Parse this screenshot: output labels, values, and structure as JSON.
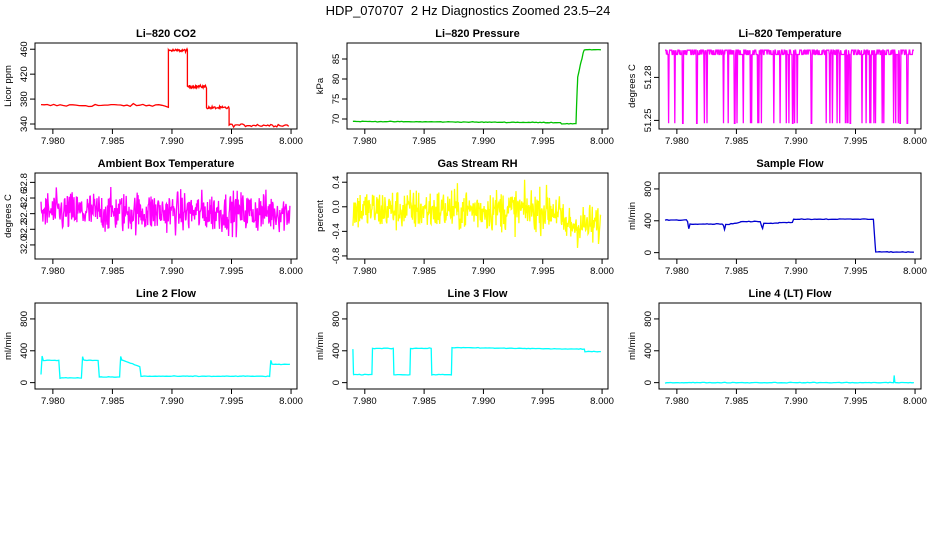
{
  "title": "HDP_070707  2 Hz Diagnostics Zoomed 23.5–24",
  "chart_data": [
    {
      "type": "line",
      "title": "Li–820 CO2",
      "ylabel": "Licor ppm",
      "color": "#ff0000",
      "xlim": [
        7.9785,
        8.0005
      ],
      "ylim": [
        332,
        470
      ],
      "xticks": [
        "7.980",
        "7.985",
        "7.990",
        "7.995",
        "8.000"
      ],
      "yticks": [
        "340",
        "380",
        "420",
        "460"
      ],
      "series": [
        {
          "kind": "step",
          "x": [
            7.979,
            7.9897,
            7.9913,
            7.9929,
            7.9948,
            7.9998
          ],
          "y": [
            370,
            458,
            400,
            366,
            338,
            338
          ],
          "noise": 1.2
        }
      ]
    },
    {
      "type": "line",
      "title": "Li–820 Pressure",
      "ylabel": "kPa",
      "color": "#00c000",
      "xlim": [
        7.9785,
        8.0005
      ],
      "ylim": [
        67.5,
        89
      ],
      "xticks": [
        "7.980",
        "7.985",
        "7.990",
        "7.995",
        "8.000"
      ],
      "yticks": [
        "70",
        "75",
        "80",
        "85"
      ],
      "series": [
        {
          "kind": "points",
          "x": [
            7.979,
            7.9965,
            7.9966,
            7.9978,
            7.99785,
            7.9979,
            7.99795,
            7.9981,
            7.9982,
            7.9983,
            7.9984,
            7.9985,
            7.9999
          ],
          "y": [
            69.4,
            69.1,
            68.8,
            68.8,
            73.5,
            77.5,
            80.5,
            82.5,
            84.0,
            85.0,
            86.5,
            87.3,
            87.3
          ]
        }
      ]
    },
    {
      "type": "line",
      "title": "Li–820 Temperature",
      "ylabel": "degrees C",
      "color": "#ff00ff",
      "xlim": [
        7.9785,
        8.0005
      ],
      "ylim": [
        51.244,
        51.304
      ],
      "xticks": [
        "7.980",
        "7.985",
        "7.990",
        "7.995",
        "8.000"
      ],
      "yticks": [
        "51.25",
        "51.28"
      ],
      "series": [
        {
          "kind": "binary",
          "x": [
            7.979,
            7.9999
          ],
          "levels": [
            51.248,
            51.299
          ],
          "mean": 51.296
        }
      ]
    },
    {
      "type": "line",
      "title": "Ambient Box Temperature",
      "ylabel": "degrees C",
      "color": "#ff00ff",
      "xlim": [
        7.9785,
        8.0005
      ],
      "ylim": [
        31.82,
        32.92
      ],
      "xticks": [
        "7.980",
        "7.985",
        "7.990",
        "7.995",
        "8.000"
      ],
      "yticks": [
        "32.0",
        "32.2",
        "32.4",
        "32.6",
        "32.8"
      ],
      "series": [
        {
          "kind": "noise",
          "x": [
            7.979,
            7.9999
          ],
          "mean": 32.42,
          "sd": 0.13
        }
      ]
    },
    {
      "type": "line",
      "title": "Gas Stream RH",
      "ylabel": "percent",
      "color": "#ffff00",
      "xlim": [
        7.9785,
        8.0005
      ],
      "ylim": [
        -0.85,
        0.55
      ],
      "xticks": [
        "7.980",
        "7.985",
        "7.990",
        "7.995",
        "8.000"
      ],
      "yticks": [
        "-0.8",
        "-0.4",
        "0.0",
        "0.4"
      ],
      "series": [
        {
          "kind": "noise",
          "x": [
            7.979,
            7.9965,
            7.9999
          ],
          "mean": [
            -0.05,
            -0.05,
            -0.3
          ],
          "sd": 0.17
        }
      ]
    },
    {
      "type": "line",
      "title": "Sample Flow",
      "ylabel": "ml/min",
      "color": "#0000d0",
      "xlim": [
        7.9785,
        8.0005
      ],
      "ylim": [
        -80,
        1000
      ],
      "xticks": [
        "7.980",
        "7.985",
        "7.990",
        "7.995",
        "8.000"
      ],
      "yticks": [
        "0",
        "400",
        "800"
      ],
      "series": [
        {
          "kind": "points",
          "x": [
            7.979,
            7.9808,
            7.9809,
            7.981,
            7.9811,
            7.9838,
            7.9839,
            7.984,
            7.9841,
            7.9853,
            7.9854,
            7.987,
            7.9871,
            7.9872,
            7.9873,
            7.9885,
            7.9886,
            7.9897,
            7.9898,
            7.99,
            7.9965,
            7.9966,
            7.9967,
            7.9999
          ],
          "y": [
            410,
            410,
            390,
            300,
            360,
            360,
            350,
            290,
            350,
            380,
            390,
            390,
            340,
            300,
            370,
            370,
            380,
            380,
            420,
            420,
            420,
            200,
            10,
            5
          ]
        }
      ]
    },
    {
      "type": "line",
      "title": "Line 2 Flow",
      "ylabel": "ml/min",
      "color": "#00ffff",
      "xlim": [
        7.9785,
        8.0005
      ],
      "ylim": [
        -80,
        1000
      ],
      "xticks": [
        "7.980",
        "7.985",
        "7.990",
        "7.995",
        "8.000"
      ],
      "yticks": [
        "0",
        "400",
        "800"
      ],
      "series": [
        {
          "kind": "points",
          "x": [
            7.979,
            7.9791,
            7.9792,
            7.9805,
            7.9806,
            7.9824,
            7.9825,
            7.9826,
            7.9827,
            7.9838,
            7.9839,
            7.9856,
            7.9857,
            7.9858,
            7.9859,
            7.9873,
            7.9874,
            7.9875,
            7.9982,
            7.9983,
            7.9984,
            7.9999
          ],
          "y": [
            100,
            330,
            280,
            280,
            60,
            60,
            330,
            280,
            280,
            280,
            70,
            70,
            330,
            280,
            280,
            200,
            80,
            80,
            80,
            280,
            230,
            230
          ]
        }
      ]
    },
    {
      "type": "line",
      "title": "Line 3 Flow",
      "ylabel": "ml/min",
      "color": "#00ffff",
      "xlim": [
        7.9785,
        8.0005
      ],
      "ylim": [
        -80,
        1000
      ],
      "xticks": [
        "7.980",
        "7.985",
        "7.990",
        "7.995",
        "8.000"
      ],
      "yticks": [
        "0",
        "400",
        "800"
      ],
      "series": [
        {
          "kind": "points",
          "x": [
            7.979,
            7.97905,
            7.9791,
            7.9806,
            7.98065,
            7.9824,
            7.98245,
            7.9838,
            7.98385,
            7.9856,
            7.98565,
            7.9873,
            7.98735,
            7.9985,
            7.99855,
            7.9999
          ],
          "y": [
            420,
            100,
            100,
            100,
            430,
            430,
            100,
            100,
            430,
            430,
            100,
            100,
            440,
            420,
            390,
            390
          ]
        }
      ]
    },
    {
      "type": "line",
      "title": "Line 4 (LT) Flow",
      "ylabel": "ml/min",
      "color": "#00ffff",
      "xlim": [
        7.9785,
        8.0005
      ],
      "ylim": [
        -80,
        1000
      ],
      "xticks": [
        "7.980",
        "7.985",
        "7.990",
        "7.995",
        "8.000"
      ],
      "yticks": [
        "0",
        "400",
        "800"
      ],
      "series": [
        {
          "kind": "points",
          "x": [
            7.979,
            7.9982,
            7.99825,
            7.9983,
            7.99835,
            7.9999
          ],
          "y": [
            0,
            0,
            90,
            10,
            0,
            0
          ]
        }
      ]
    }
  ]
}
